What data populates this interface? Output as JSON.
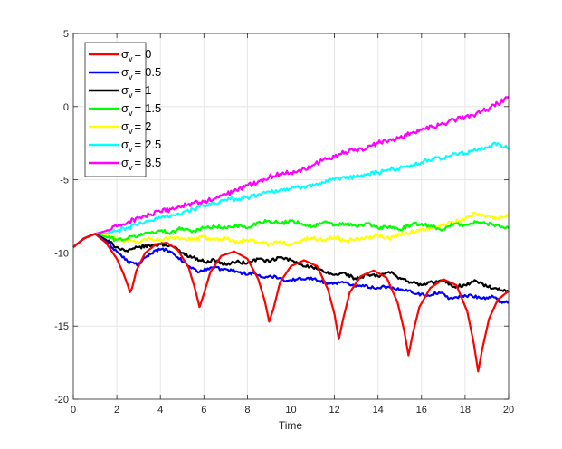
{
  "chart_data": {
    "type": "line",
    "title": "",
    "xlabel": "Time",
    "ylabel": "",
    "xlim": [
      0,
      20
    ],
    "ylim": [
      -20,
      5
    ],
    "xticks": [
      0,
      2,
      4,
      6,
      8,
      10,
      12,
      14,
      16,
      18,
      20
    ],
    "yticks": [
      -20,
      -15,
      -10,
      -5,
      0,
      5
    ],
    "grid": true,
    "legend": {
      "position": "top-left",
      "symbol": "σ",
      "subscript": "v",
      "equals": "="
    },
    "series": [
      {
        "name": "0",
        "color": "#ff0000",
        "points": [
          [
            0,
            -9.6
          ],
          [
            0.5,
            -9.0
          ],
          [
            1.0,
            -8.7
          ],
          [
            1.5,
            -9.3
          ],
          [
            2.0,
            -10.4
          ],
          [
            2.3,
            -11.4
          ],
          [
            2.5,
            -12.2
          ],
          [
            2.6,
            -12.7
          ],
          [
            2.7,
            -12.4
          ],
          [
            2.9,
            -11.2
          ],
          [
            3.3,
            -10.0
          ],
          [
            3.8,
            -9.4
          ],
          [
            4.3,
            -9.3
          ],
          [
            4.8,
            -9.8
          ],
          [
            5.3,
            -11.0
          ],
          [
            5.6,
            -12.5
          ],
          [
            5.8,
            -13.7
          ],
          [
            6.0,
            -12.8
          ],
          [
            6.3,
            -11.3
          ],
          [
            6.8,
            -10.2
          ],
          [
            7.4,
            -9.9
          ],
          [
            8.0,
            -10.4
          ],
          [
            8.5,
            -11.8
          ],
          [
            8.8,
            -13.3
          ],
          [
            9.0,
            -14.7
          ],
          [
            9.2,
            -13.8
          ],
          [
            9.5,
            -12.0
          ],
          [
            10.0,
            -10.9
          ],
          [
            10.6,
            -10.5
          ],
          [
            11.2,
            -10.9
          ],
          [
            11.7,
            -12.5
          ],
          [
            12.0,
            -14.2
          ],
          [
            12.2,
            -15.9
          ],
          [
            12.4,
            -14.5
          ],
          [
            12.7,
            -12.7
          ],
          [
            13.2,
            -11.6
          ],
          [
            13.8,
            -11.2
          ],
          [
            14.4,
            -11.7
          ],
          [
            14.9,
            -13.4
          ],
          [
            15.2,
            -15.3
          ],
          [
            15.4,
            -17.0
          ],
          [
            15.6,
            -15.5
          ],
          [
            15.9,
            -13.7
          ],
          [
            16.4,
            -12.4
          ],
          [
            17.0,
            -11.8
          ],
          [
            17.6,
            -12.2
          ],
          [
            18.1,
            -14.0
          ],
          [
            18.4,
            -16.2
          ],
          [
            18.6,
            -18.1
          ],
          [
            18.8,
            -16.5
          ],
          [
            19.1,
            -14.5
          ],
          [
            19.5,
            -13.2
          ],
          [
            20.0,
            -12.6
          ]
        ]
      },
      {
        "name": "0.5",
        "color": "#0000ff",
        "points": [
          [
            0,
            -9.6
          ],
          [
            0.5,
            -9.0
          ],
          [
            1.0,
            -8.7
          ],
          [
            1.5,
            -9.2
          ],
          [
            2.0,
            -9.9
          ],
          [
            2.5,
            -10.6
          ],
          [
            3.0,
            -10.8
          ],
          [
            3.4,
            -10.2
          ],
          [
            3.8,
            -9.8
          ],
          [
            4.3,
            -9.8
          ],
          [
            4.8,
            -10.3
          ],
          [
            5.3,
            -10.9
          ],
          [
            5.8,
            -11.3
          ],
          [
            6.3,
            -11.0
          ],
          [
            6.8,
            -11.1
          ],
          [
            7.3,
            -11.2
          ],
          [
            7.8,
            -11.4
          ],
          [
            8.3,
            -11.4
          ],
          [
            8.8,
            -11.7
          ],
          [
            9.3,
            -11.6
          ],
          [
            9.8,
            -11.9
          ],
          [
            10.3,
            -11.8
          ],
          [
            10.8,
            -11.7
          ],
          [
            11.3,
            -11.9
          ],
          [
            11.8,
            -12.1
          ],
          [
            12.3,
            -12.0
          ],
          [
            12.8,
            -12.2
          ],
          [
            13.3,
            -12.2
          ],
          [
            13.8,
            -12.4
          ],
          [
            14.3,
            -12.3
          ],
          [
            14.8,
            -12.5
          ],
          [
            15.3,
            -12.5
          ],
          [
            15.8,
            -12.8
          ],
          [
            16.3,
            -12.9
          ],
          [
            16.8,
            -12.7
          ],
          [
            17.3,
            -13.1
          ],
          [
            17.8,
            -13.0
          ],
          [
            18.3,
            -12.9
          ],
          [
            18.8,
            -13.1
          ],
          [
            19.3,
            -13.0
          ],
          [
            19.6,
            -13.3
          ],
          [
            20.0,
            -13.4
          ]
        ]
      },
      {
        "name": "1",
        "color": "#000000",
        "points": [
          [
            0,
            -9.6
          ],
          [
            0.5,
            -9.0
          ],
          [
            1.0,
            -8.7
          ],
          [
            1.5,
            -9.1
          ],
          [
            2.0,
            -9.6
          ],
          [
            2.5,
            -9.9
          ],
          [
            3.0,
            -9.6
          ],
          [
            3.5,
            -9.5
          ],
          [
            4.0,
            -9.4
          ],
          [
            4.5,
            -9.5
          ],
          [
            5.0,
            -10.0
          ],
          [
            5.5,
            -10.3
          ],
          [
            6.0,
            -10.6
          ],
          [
            6.5,
            -10.5
          ],
          [
            7.0,
            -10.8
          ],
          [
            7.5,
            -10.6
          ],
          [
            8.0,
            -10.7
          ],
          [
            8.5,
            -10.4
          ],
          [
            9.0,
            -10.6
          ],
          [
            9.5,
            -10.3
          ],
          [
            10.0,
            -10.5
          ],
          [
            10.5,
            -10.8
          ],
          [
            11.0,
            -11.0
          ],
          [
            11.5,
            -11.3
          ],
          [
            12.0,
            -11.5
          ],
          [
            12.5,
            -11.4
          ],
          [
            13.0,
            -11.8
          ],
          [
            13.5,
            -11.5
          ],
          [
            14.0,
            -11.6
          ],
          [
            14.5,
            -11.3
          ],
          [
            15.0,
            -11.7
          ],
          [
            15.5,
            -12.0
          ],
          [
            16.0,
            -12.2
          ],
          [
            16.5,
            -12.0
          ],
          [
            17.0,
            -11.9
          ],
          [
            17.5,
            -12.3
          ],
          [
            18.0,
            -12.2
          ],
          [
            18.5,
            -11.9
          ],
          [
            19.0,
            -12.3
          ],
          [
            19.5,
            -12.5
          ],
          [
            20.0,
            -12.7
          ]
        ]
      },
      {
        "name": "1.5",
        "color": "#00ff00",
        "points": [
          [
            0,
            -9.6
          ],
          [
            0.5,
            -9.0
          ],
          [
            1.0,
            -8.7
          ],
          [
            1.5,
            -8.9
          ],
          [
            2.0,
            -9.1
          ],
          [
            2.5,
            -9.0
          ],
          [
            3.0,
            -8.8
          ],
          [
            3.5,
            -8.6
          ],
          [
            4.0,
            -8.5
          ],
          [
            4.5,
            -8.6
          ],
          [
            5.0,
            -8.3
          ],
          [
            5.5,
            -8.5
          ],
          [
            6.0,
            -8.3
          ],
          [
            6.5,
            -8.2
          ],
          [
            7.0,
            -8.3
          ],
          [
            7.5,
            -8.1
          ],
          [
            8.0,
            -8.3
          ],
          [
            8.5,
            -7.9
          ],
          [
            9.0,
            -7.8
          ],
          [
            9.5,
            -8.0
          ],
          [
            10.0,
            -7.8
          ],
          [
            10.5,
            -8.0
          ],
          [
            11.0,
            -8.2
          ],
          [
            11.5,
            -7.9
          ],
          [
            12.0,
            -8.1
          ],
          [
            12.5,
            -8.0
          ],
          [
            13.0,
            -8.2
          ],
          [
            13.5,
            -8.0
          ],
          [
            14.0,
            -8.3
          ],
          [
            14.5,
            -8.2
          ],
          [
            15.0,
            -8.4
          ],
          [
            15.5,
            -8.1
          ],
          [
            16.0,
            -8.0
          ],
          [
            16.5,
            -8.2
          ],
          [
            17.0,
            -8.4
          ],
          [
            17.5,
            -8.0
          ],
          [
            18.0,
            -8.1
          ],
          [
            18.5,
            -7.9
          ],
          [
            19.0,
            -8.0
          ],
          [
            19.5,
            -8.1
          ],
          [
            20.0,
            -8.3
          ]
        ]
      },
      {
        "name": "2",
        "color": "#ffff00",
        "points": [
          [
            0,
            -9.6
          ],
          [
            0.5,
            -9.0
          ],
          [
            1.0,
            -8.7
          ],
          [
            1.5,
            -8.8
          ],
          [
            2.0,
            -9.0
          ],
          [
            2.5,
            -9.2
          ],
          [
            3.0,
            -9.3
          ],
          [
            3.5,
            -9.0
          ],
          [
            4.0,
            -9.2
          ],
          [
            4.5,
            -8.9
          ],
          [
            5.0,
            -9.0
          ],
          [
            5.5,
            -9.1
          ],
          [
            6.0,
            -8.9
          ],
          [
            6.5,
            -9.1
          ],
          [
            7.0,
            -9.0
          ],
          [
            7.5,
            -9.2
          ],
          [
            8.0,
            -9.1
          ],
          [
            8.5,
            -9.3
          ],
          [
            9.0,
            -9.4
          ],
          [
            9.5,
            -9.2
          ],
          [
            10.0,
            -9.5
          ],
          [
            10.5,
            -9.1
          ],
          [
            11.0,
            -9.0
          ],
          [
            11.5,
            -9.1
          ],
          [
            12.0,
            -8.9
          ],
          [
            12.5,
            -9.2
          ],
          [
            13.0,
            -9.0
          ],
          [
            13.5,
            -8.9
          ],
          [
            14.0,
            -8.8
          ],
          [
            14.5,
            -9.0
          ],
          [
            15.0,
            -8.7
          ],
          [
            15.5,
            -8.6
          ],
          [
            16.0,
            -8.4
          ],
          [
            16.5,
            -8.3
          ],
          [
            17.0,
            -8.1
          ],
          [
            17.5,
            -7.9
          ],
          [
            18.0,
            -7.7
          ],
          [
            18.5,
            -7.3
          ],
          [
            19.0,
            -7.5
          ],
          [
            19.5,
            -7.6
          ],
          [
            20.0,
            -7.4
          ]
        ]
      },
      {
        "name": "2.5",
        "color": "#00ffff",
        "points": [
          [
            0,
            -9.6
          ],
          [
            0.5,
            -9.0
          ],
          [
            1.0,
            -8.7
          ],
          [
            1.5,
            -8.7
          ],
          [
            2.0,
            -8.5
          ],
          [
            2.5,
            -8.3
          ],
          [
            3.0,
            -8.0
          ],
          [
            3.5,
            -7.8
          ],
          [
            4.0,
            -7.6
          ],
          [
            4.5,
            -7.4
          ],
          [
            5.0,
            -7.3
          ],
          [
            5.5,
            -7.0
          ],
          [
            6.0,
            -6.8
          ],
          [
            6.5,
            -6.6
          ],
          [
            7.0,
            -6.4
          ],
          [
            7.5,
            -6.3
          ],
          [
            8.0,
            -6.2
          ],
          [
            8.5,
            -6.0
          ],
          [
            9.0,
            -5.8
          ],
          [
            9.5,
            -5.7
          ],
          [
            10.0,
            -5.6
          ],
          [
            10.5,
            -5.5
          ],
          [
            11.0,
            -5.3
          ],
          [
            11.5,
            -5.2
          ],
          [
            12.0,
            -5.0
          ],
          [
            12.5,
            -4.9
          ],
          [
            13.0,
            -4.8
          ],
          [
            13.5,
            -4.6
          ],
          [
            14.0,
            -4.5
          ],
          [
            14.5,
            -4.3
          ],
          [
            15.0,
            -4.2
          ],
          [
            15.5,
            -4.0
          ],
          [
            16.0,
            -3.8
          ],
          [
            16.5,
            -3.6
          ],
          [
            17.0,
            -3.5
          ],
          [
            17.5,
            -3.2
          ],
          [
            18.0,
            -3.2
          ],
          [
            18.5,
            -3.0
          ],
          [
            19.0,
            -2.8
          ],
          [
            19.5,
            -2.5
          ],
          [
            20.0,
            -2.9
          ]
        ]
      },
      {
        "name": "3.5",
        "color": "#ff00ff",
        "points": [
          [
            0,
            -9.6
          ],
          [
            0.5,
            -9.0
          ],
          [
            1.0,
            -8.7
          ],
          [
            1.5,
            -8.5
          ],
          [
            2.0,
            -8.2
          ],
          [
            2.5,
            -7.9
          ],
          [
            3.0,
            -7.6
          ],
          [
            3.5,
            -7.4
          ],
          [
            4.0,
            -7.2
          ],
          [
            4.5,
            -7.0
          ],
          [
            5.0,
            -6.8
          ],
          [
            5.5,
            -6.6
          ],
          [
            6.0,
            -6.5
          ],
          [
            6.5,
            -6.3
          ],
          [
            7.0,
            -6.0
          ],
          [
            7.5,
            -5.7
          ],
          [
            8.0,
            -5.4
          ],
          [
            8.5,
            -5.1
          ],
          [
            9.0,
            -4.8
          ],
          [
            9.5,
            -4.6
          ],
          [
            10.0,
            -4.5
          ],
          [
            10.5,
            -4.3
          ],
          [
            11.0,
            -4.0
          ],
          [
            11.5,
            -3.6
          ],
          [
            12.0,
            -3.4
          ],
          [
            12.5,
            -3.1
          ],
          [
            13.0,
            -3.0
          ],
          [
            13.5,
            -2.8
          ],
          [
            14.0,
            -2.5
          ],
          [
            14.5,
            -2.3
          ],
          [
            15.0,
            -2.1
          ],
          [
            15.5,
            -1.8
          ],
          [
            16.0,
            -1.6
          ],
          [
            16.5,
            -1.4
          ],
          [
            17.0,
            -1.2
          ],
          [
            17.5,
            -0.9
          ],
          [
            18.0,
            -0.7
          ],
          [
            18.5,
            -0.5
          ],
          [
            19.0,
            -0.2
          ],
          [
            19.5,
            0.2
          ],
          [
            20.0,
            0.7
          ]
        ]
      }
    ]
  }
}
